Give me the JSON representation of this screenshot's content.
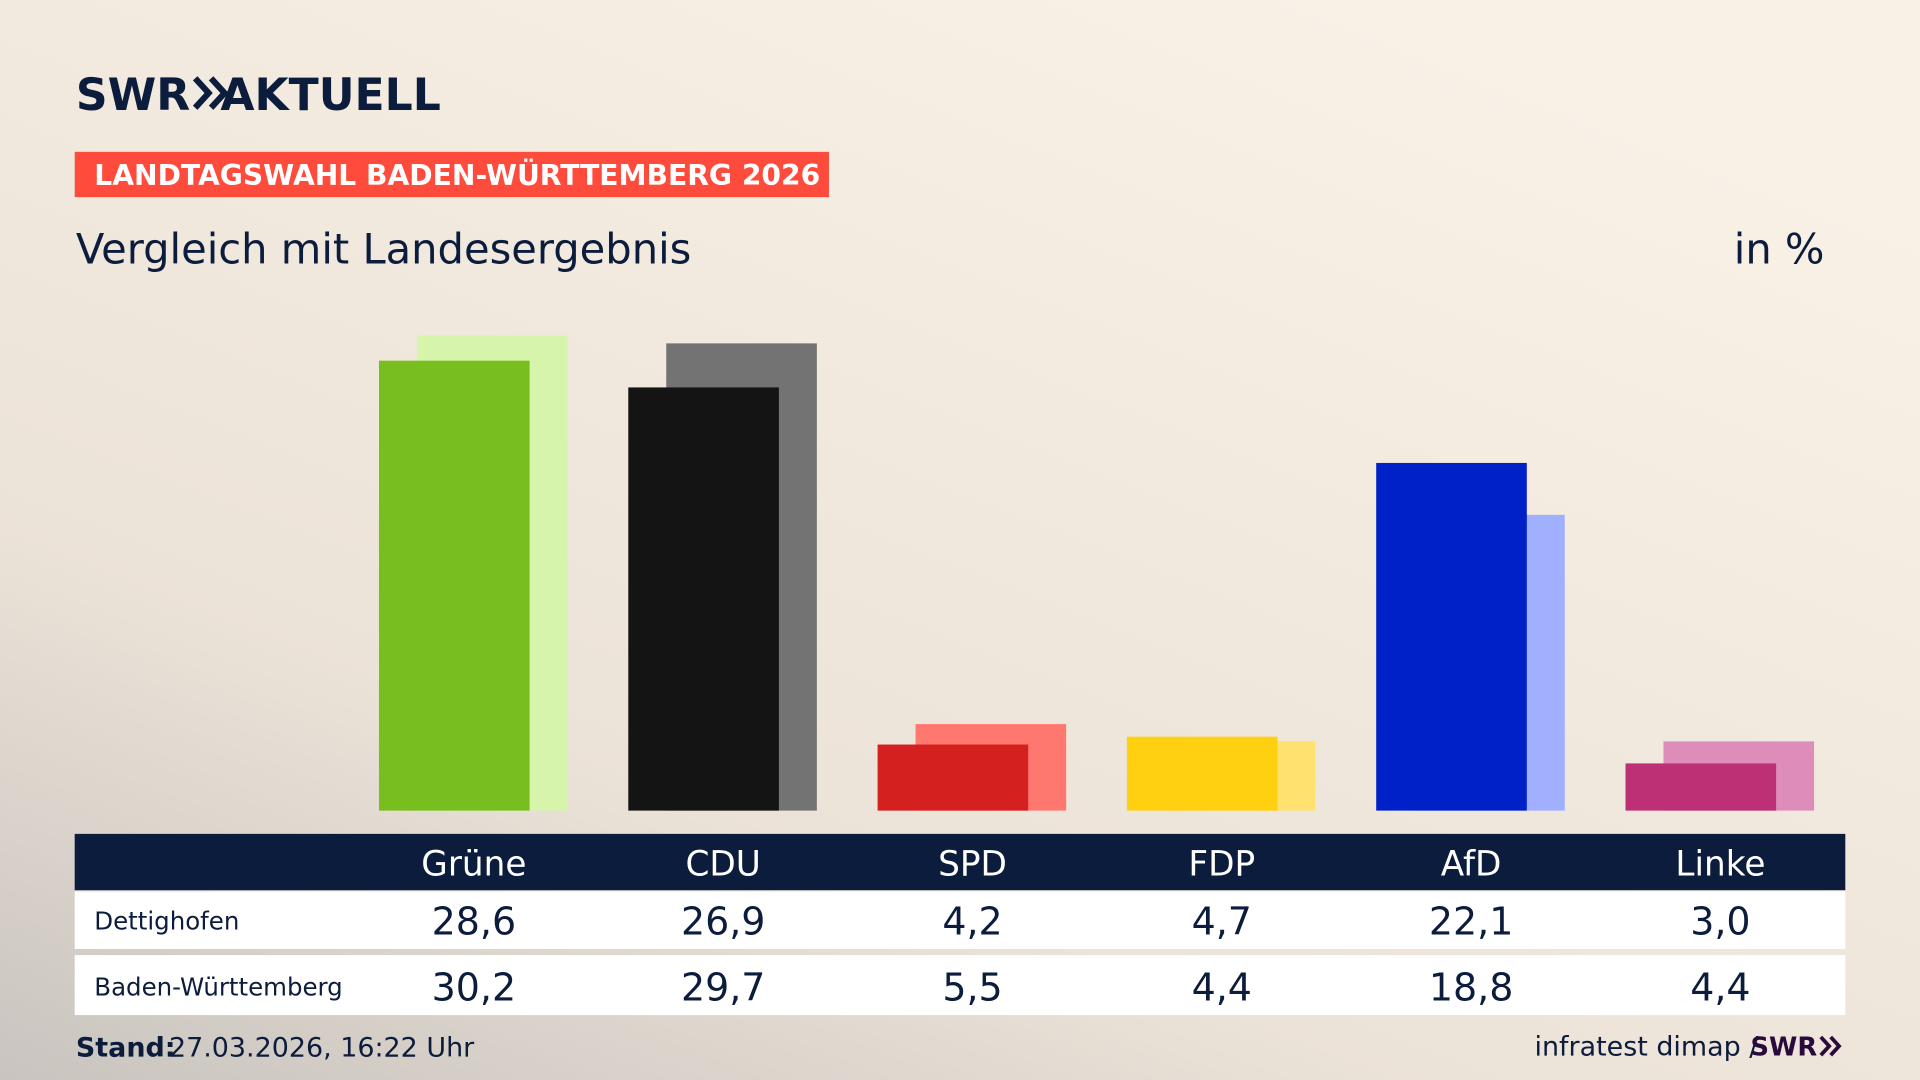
{
  "brand": {
    "name": "SWR",
    "product": "AKTUELL"
  },
  "chart_data": {
    "type": "bar",
    "title": "LANDTAGSWAHL BADEN-WÜRTTEMBERG 2026",
    "subtitle": "Vergleich mit Landesergebnis",
    "unit": "in %",
    "categories": [
      "Grüne",
      "CDU",
      "SPD",
      "FDP",
      "AfD",
      "Linke"
    ],
    "series": [
      {
        "name": "Dettighofen",
        "colors": [
          "#78be1e",
          "#141414",
          "#d4201e",
          "#ffd010",
          "#0020c8",
          "#be3075"
        ],
        "values": [
          28.6,
          26.9,
          4.2,
          4.7,
          22.1,
          3.0
        ],
        "value_labels": [
          "28,6",
          "26,9",
          "4,2",
          "4,7",
          "22,1",
          "3,0"
        ]
      },
      {
        "name": "Baden-Württemberg",
        "colors": [
          "#d6f5aa",
          "#737373",
          "#ff7870",
          "#ffe170",
          "#a0b0ff",
          "#de8cb9"
        ],
        "values": [
          30.2,
          29.7,
          5.5,
          4.4,
          18.8,
          4.4
        ],
        "value_labels": [
          "30,2",
          "29,7",
          "5,5",
          "4,4",
          "18,8",
          "4,4"
        ]
      }
    ]
  },
  "footer": {
    "stand_label": "Stand:",
    "stand": "27.03.2026, 16:22 Uhr",
    "source": "infratest dimap /",
    "source_brand": "SWR"
  }
}
